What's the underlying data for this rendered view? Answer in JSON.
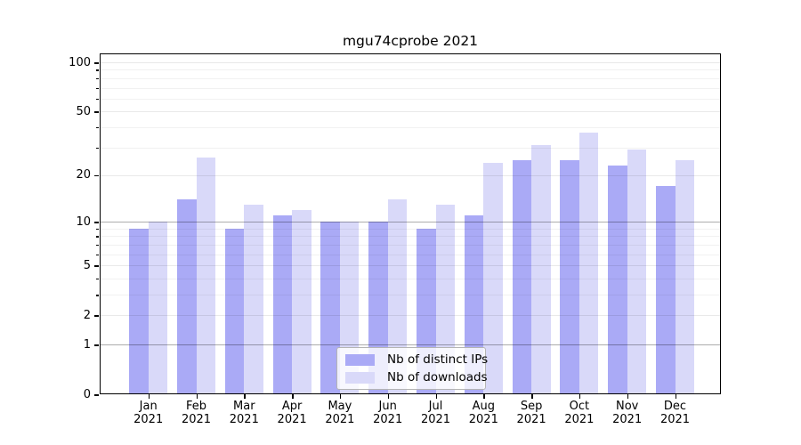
{
  "chart_data": {
    "type": "bar",
    "title": "mgu74cprobe 2021",
    "categories": [
      "Jan",
      "Feb",
      "Mar",
      "Apr",
      "May",
      "Jun",
      "Jul",
      "Aug",
      "Sep",
      "Oct",
      "Nov",
      "Dec"
    ],
    "year": "2021",
    "series": [
      {
        "name": "Nb of distinct IPs",
        "color": "#aaaaf6",
        "values": [
          9,
          14,
          9,
          11,
          10,
          10,
          9,
          11,
          25,
          25,
          23,
          17
        ]
      },
      {
        "name": "Nb of downloads",
        "color": "#d9d9f9",
        "values": [
          10,
          26,
          13,
          12,
          10,
          14,
          13,
          24,
          31,
          37,
          29,
          25
        ]
      }
    ],
    "yscale": "log1p",
    "yticks": [
      0,
      1,
      2,
      5,
      10,
      20,
      50,
      100
    ],
    "yticks_minor": [
      3,
      4,
      6,
      7,
      8,
      9,
      30,
      40,
      60,
      70,
      80,
      90
    ],
    "yticks_strong": [
      1,
      10
    ],
    "ylim": [
      0,
      114
    ],
    "xlabel": "",
    "ylabel": "",
    "grid": true,
    "legend_position": "lower-center"
  }
}
